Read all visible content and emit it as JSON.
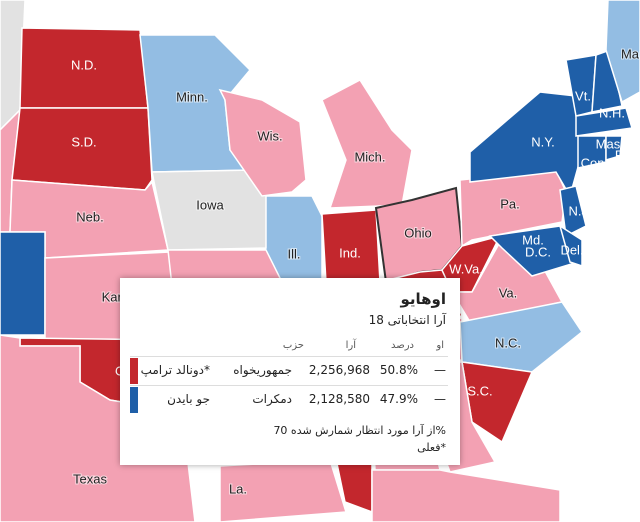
{
  "map": {
    "labels": [
      "N.D.",
      "S.D.",
      "Minn.",
      "Wis.",
      "Mich.",
      "Iowa",
      "Neb.",
      "Ill.",
      "Ind.",
      "Ohio",
      "Pa.",
      "N.Y.",
      "Vt.",
      "N.H.",
      "Ma",
      "Mass.",
      "Conn.",
      "R.I.",
      "N.J.",
      "Md.",
      "Del.",
      "D.C.",
      "W.Va.",
      "Va.",
      "N.C.",
      "S.C.",
      "Kan.",
      "O",
      "Texas",
      "La."
    ]
  },
  "tooltip": {
    "title": "اوهایو",
    "subtitle": "آرا انتخاباتی 18",
    "headers": [
      "او",
      "درصد",
      "آرا",
      "حزب"
    ],
    "rows": [
      {
        "candidate": "دونالد ترامپ*",
        "party": "جمهوریخواه",
        "votes": "2,256,968",
        "percent": "50.8%",
        "ev": "—"
      },
      {
        "candidate": "جو بایدن",
        "party": "دمکرات",
        "votes": "2,128,580",
        "percent": "47.9%",
        "ev": "—"
      }
    ],
    "note": "از آرا مورد انتظار شمارش شده 70%",
    "footnote": "فعلی*"
  }
}
